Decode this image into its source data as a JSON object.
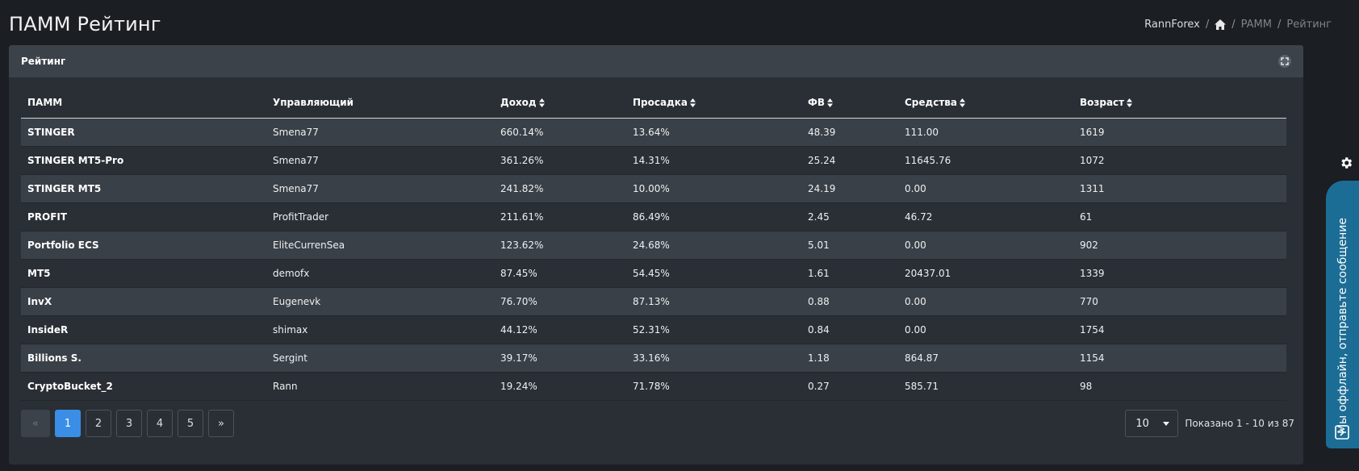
{
  "page": {
    "title": "ПАММ Рейтинг"
  },
  "breadcrumb": {
    "root": "RannForex",
    "sep": "/",
    "level2": "PAMM",
    "current": "Рейтинг"
  },
  "card": {
    "title": "Рейтинг"
  },
  "table": {
    "headers": [
      "ПАММ",
      "Управляющий",
      "Доход",
      "Просадка",
      "ФВ",
      "Средства",
      "Возраст"
    ],
    "rows": [
      [
        "STINGER",
        "Smena77",
        "660.14%",
        "13.64%",
        "48.39",
        "111.00",
        "1619"
      ],
      [
        "STINGER MT5-Pro",
        "Smena77",
        "361.26%",
        "14.31%",
        "25.24",
        "11645.76",
        "1072"
      ],
      [
        "STINGER MT5",
        "Smena77",
        "241.82%",
        "10.00%",
        "24.19",
        "0.00",
        "1311"
      ],
      [
        "PROFIT",
        "ProfitTrader",
        "211.61%",
        "86.49%",
        "2.45",
        "46.72",
        "61"
      ],
      [
        "Portfolio ECS",
        "EliteCurrenSea",
        "123.62%",
        "24.68%",
        "5.01",
        "0.00",
        "902"
      ],
      [
        "MT5",
        "demofx",
        "87.45%",
        "54.45%",
        "1.61",
        "20437.01",
        "1339"
      ],
      [
        "InvX",
        "Eugenevk",
        "76.70%",
        "87.13%",
        "0.88",
        "0.00",
        "770"
      ],
      [
        "InsideR",
        "shimax",
        "44.12%",
        "52.31%",
        "0.84",
        "0.00",
        "1754"
      ],
      [
        "Billions S.",
        "Sergint",
        "39.17%",
        "33.16%",
        "1.18",
        "864.87",
        "1154"
      ],
      [
        "CryptoBucket_2",
        "Rann",
        "19.24%",
        "71.78%",
        "0.27",
        "585.71",
        "98"
      ]
    ]
  },
  "pagination": {
    "pages": [
      "1",
      "2",
      "3",
      "4",
      "5"
    ],
    "active_page": "1",
    "prev_glyph": "«",
    "next_glyph": "»",
    "page_size": "10",
    "info": "Показано 1 - 10 из 87"
  },
  "chat": {
    "text": "Мы оффлайн, отправьте сообщение"
  },
  "colors": {
    "accent": "#3a8ee6",
    "chat": "#1c6d95",
    "background": "#1b1e22",
    "card": "#2a2f35"
  },
  "icons": [
    "home-icon",
    "expand-icon",
    "sort-icon",
    "gear-icon",
    "chat-icon",
    "chevron-down-icon"
  ]
}
